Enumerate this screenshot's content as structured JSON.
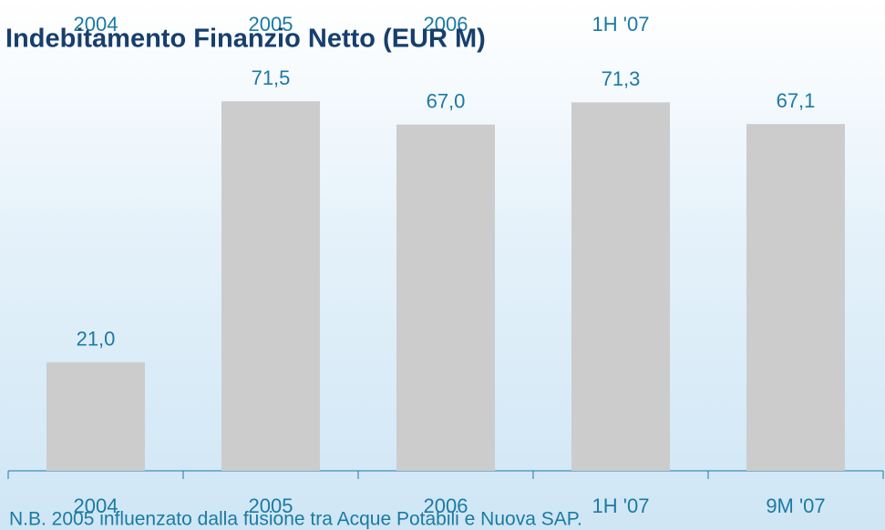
{
  "chart_data": {
    "type": "bar",
    "title": "Indebitamento Finanzio Netto (EUR M)",
    "annotation": "N.B. 2005 influenzato dalla fusione tra Acque Potabili e Nuova SAP.",
    "categories": [
      "2004",
      "2005",
      "2006",
      "1H '07",
      "9M '07"
    ],
    "values": [
      21.0,
      71.5,
      67.0,
      71.3,
      67.1
    ],
    "value_labels": [
      "21,0",
      "71,5",
      "67,0",
      "71,3",
      "67,1"
    ],
    "color": "#cccccc",
    "ylim": [
      0,
      80
    ]
  }
}
